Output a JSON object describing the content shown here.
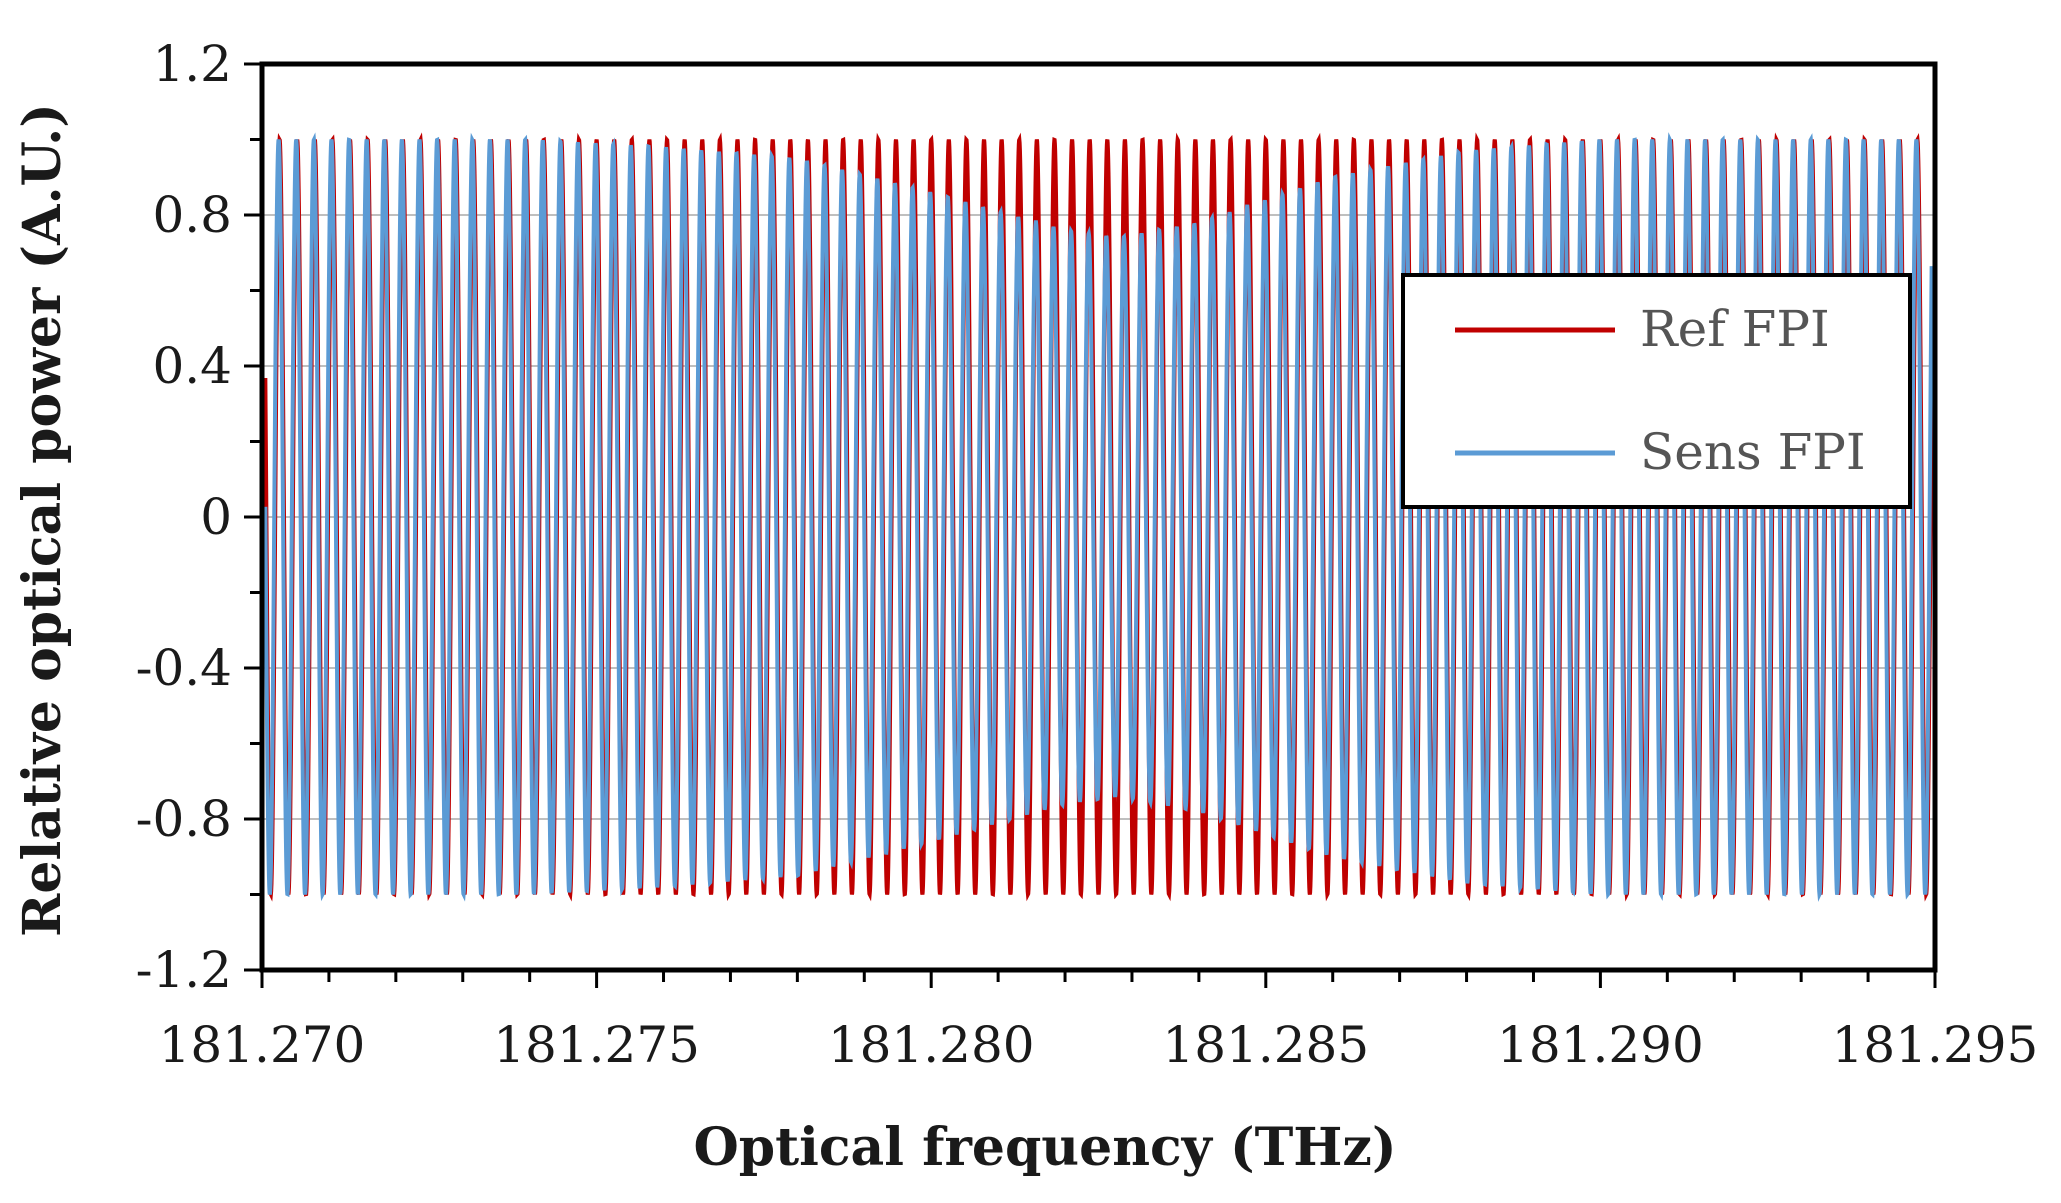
{
  "chart_data": {
    "type": "line",
    "title": "",
    "xlabel": "Optical frequency (THz)",
    "ylabel": "Relative optical power (A.U.)",
    "xlim": [
      181.27,
      181.295
    ],
    "ylim": [
      -1.2,
      1.2
    ],
    "x_ticks": [
      "181.270",
      "181.275",
      "181.280",
      "181.285",
      "181.290",
      "181.295"
    ],
    "y_ticks": [
      "1.2",
      "0.8",
      "0.4",
      "0",
      "-0.4",
      "-0.8",
      "-1.2"
    ],
    "grid": "horizontal",
    "legend_position": "right",
    "series": [
      {
        "name": "Ref FPI",
        "color": "#c00000",
        "description_x_range": [
          181.2701,
          181.2949
        ],
        "fringes_across_range": 95,
        "amplitude": 1.0
      },
      {
        "name": "Sens FPI",
        "color": "#5b9bd5",
        "fringes_across_range": 95,
        "amplitude_profile": {
          "x": [
            181.27,
            181.274,
            181.276,
            181.278,
            181.28,
            181.282,
            181.2828,
            181.284,
            181.286,
            181.288,
            181.29,
            181.295
          ],
          "amplitude": [
            1.0,
            1.0,
            0.98,
            0.95,
            0.86,
            0.76,
            0.74,
            0.78,
            0.9,
            0.97,
            1.0,
            1.0
          ]
        }
      }
    ]
  }
}
